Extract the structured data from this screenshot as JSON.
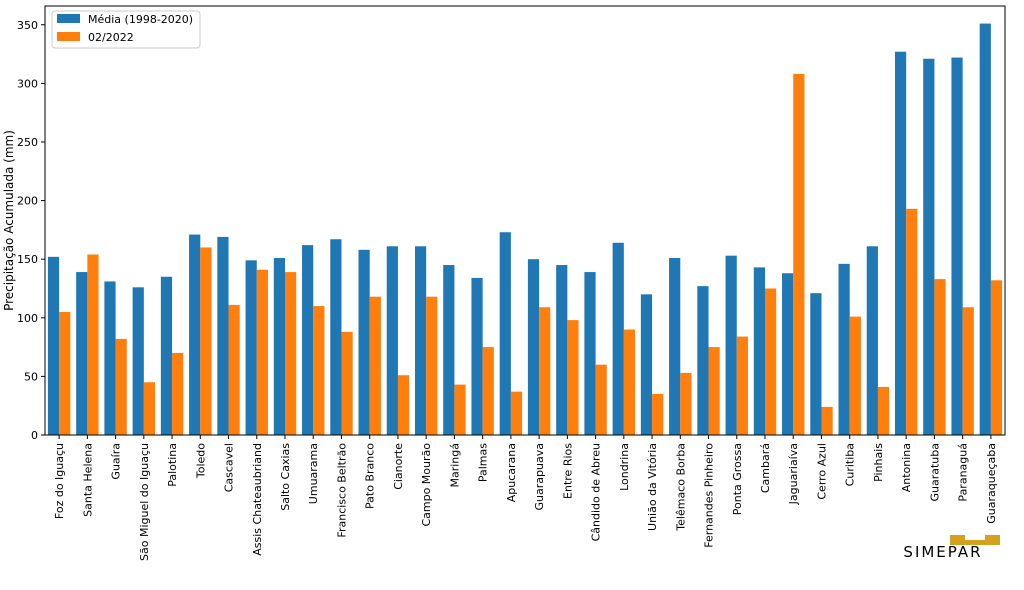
{
  "chart_data": {
    "type": "bar",
    "title": "",
    "xlabel": "",
    "ylabel": "Precipitação Acumulada (mm)",
    "ylim": [
      0,
      366
    ],
    "yticks": [
      0,
      50,
      100,
      150,
      200,
      250,
      300,
      350
    ],
    "grid": false,
    "legend_position": "top-left",
    "categories": [
      "Foz do Iguaçu",
      "Santa Helena",
      "Guaíra",
      "São Miguel do Iguaçu",
      "Palotina",
      "Toledo",
      "Cascavel",
      "Assis Chateaubriand",
      "Salto Caxias",
      "Umuarama",
      "Francisco Beltrão",
      "Pato Branco",
      "Cianorte",
      "Campo Mourão",
      "Maringá",
      "Palmas",
      "Apucarana",
      "Guarapuava",
      "Entre Rios",
      "Cândido de Abreu",
      "Londrina",
      "União da Vitória",
      "Telêmaco Borba",
      "Fernandes Pinheiro",
      "Ponta Grossa",
      "Cambará",
      "Jaguariaíva",
      "Cerro Azul",
      "Curitiba",
      "Pinhais",
      "Antonina",
      "Guaratuba",
      "Paranaguá",
      "Guaraqueçaba"
    ],
    "series": [
      {
        "name": "Média (1998-2020)",
        "color": "#1f77b4",
        "values": [
          152,
          139,
          131,
          126,
          135,
          171,
          169,
          149,
          151,
          162,
          167,
          158,
          161,
          161,
          145,
          134,
          173,
          150,
          145,
          139,
          164,
          120,
          151,
          127,
          153,
          143,
          138,
          121,
          146,
          161,
          327,
          321,
          322,
          351
        ]
      },
      {
        "name": "02/2022",
        "color": "#ff7f0e",
        "values": [
          105,
          154,
          82,
          45,
          70,
          160,
          111,
          141,
          139,
          110,
          88,
          118,
          51,
          118,
          43,
          75,
          37,
          109,
          98,
          60,
          90,
          35,
          53,
          75,
          84,
          125,
          308,
          24,
          101,
          41,
          193,
          133,
          109,
          132
        ]
      }
    ]
  },
  "logo": {
    "text": "SIMEPAR",
    "color": "#d4a020"
  }
}
